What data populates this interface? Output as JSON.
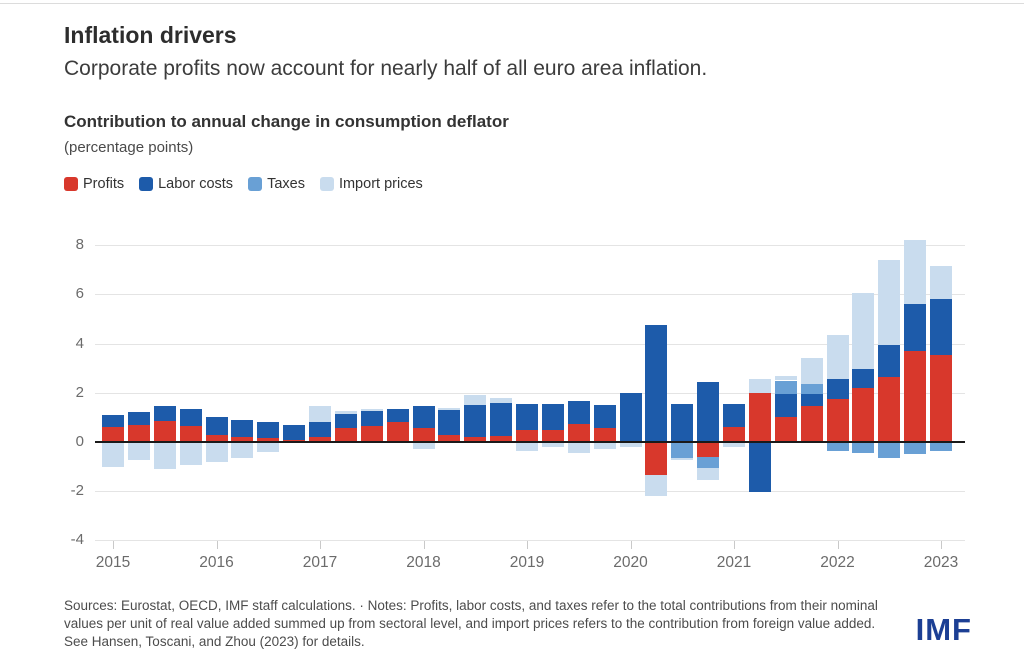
{
  "header": {
    "title": "Inflation drivers",
    "subtitle": "Corporate profits now account for nearly half of all euro area inflation."
  },
  "chart": {
    "heading": "Contribution to annual change in consumption deflator",
    "unit": "(percentage points)"
  },
  "chart_data": {
    "type": "bar",
    "stacked": true,
    "title": "Contribution to annual change in consumption deflator",
    "ylabel": "percentage points",
    "grid": true,
    "legend_position": "top-left",
    "ylim": [
      -4,
      8.6
    ],
    "yticks": [
      8,
      6,
      4,
      2,
      0,
      -2,
      -4
    ],
    "year_ticks": [
      "2015",
      "2016",
      "2017",
      "2018",
      "2019",
      "2020",
      "2021",
      "2022",
      "2023"
    ],
    "x_quarters": [
      "2015Q1",
      "2015Q2",
      "2015Q3",
      "2015Q4",
      "2016Q1",
      "2016Q2",
      "2016Q3",
      "2016Q4",
      "2017Q1",
      "2017Q2",
      "2017Q3",
      "2017Q4",
      "2018Q1",
      "2018Q2",
      "2018Q3",
      "2018Q4",
      "2019Q1",
      "2019Q2",
      "2019Q3",
      "2019Q4",
      "2020Q1",
      "2020Q2",
      "2020Q3",
      "2020Q4",
      "2021Q1",
      "2021Q2",
      "2021Q3",
      "2021Q4",
      "2022Q1",
      "2022Q2",
      "2022Q3",
      "2022Q4",
      "2023Q1"
    ],
    "series": [
      {
        "name": "Profits",
        "color": "#d8382c",
        "values": [
          0.6,
          0.7,
          0.85,
          0.65,
          0.3,
          0.2,
          0.15,
          0.1,
          0.2,
          0.55,
          0.65,
          0.8,
          0.55,
          0.3,
          0.2,
          0.25,
          0.5,
          0.5,
          0.75,
          0.55,
          0.05,
          -1.35,
          0,
          -0.6,
          0.6,
          2.0,
          1.0,
          1.45,
          1.75,
          2.2,
          2.65,
          3.7,
          3.55
        ]
      },
      {
        "name": "Labor costs",
        "color": "#1d5baa",
        "values": [
          0.5,
          0.5,
          0.6,
          0.7,
          0.7,
          0.7,
          0.65,
          0.6,
          0.6,
          0.6,
          0.6,
          0.55,
          0.9,
          1.0,
          1.3,
          1.35,
          1.05,
          1.05,
          0.9,
          0.95,
          1.95,
          4.75,
          1.55,
          2.45,
          0.95,
          -2.05,
          0.95,
          0.5,
          0.8,
          0.75,
          1.3,
          1.9,
          2.25
        ]
      },
      {
        "name": "Taxes",
        "color": "#69a0d5",
        "values": [
          0,
          0,
          0,
          0,
          0,
          0,
          0,
          0,
          0,
          0,
          0,
          0,
          0,
          0,
          0,
          0,
          0,
          0,
          0,
          0,
          0,
          0,
          -0.65,
          -0.45,
          0,
          0,
          0.55,
          0.4,
          -0.35,
          -0.45,
          -0.65,
          -0.5,
          -0.35
        ]
      },
      {
        "name": "Import prices",
        "color": "#c9dcee",
        "values": [
          -1.0,
          -0.75,
          -1.1,
          -0.95,
          -0.8,
          -0.65,
          -0.4,
          -0.05,
          0.65,
          0.1,
          0.1,
          0,
          -0.3,
          0.1,
          0.4,
          0.2,
          -0.35,
          -0.2,
          -0.45,
          -0.3,
          -0.2,
          -0.85,
          -0.1,
          -0.5,
          -0.2,
          0.55,
          0.2,
          1.05,
          1.8,
          3.1,
          3.45,
          2.6,
          1.35
        ]
      }
    ]
  },
  "footer": {
    "source_note": "Sources: Eurostat, OECD, IMF staff calculations. · Notes: Profits, labor costs, and taxes refer to the total contributions from their nominal values per unit of real value added summed up from sectoral level, and import prices refers to the contribution from foreign value added. See Hansen, Toscani, and Zhou (2023) for details.",
    "logo_text": "IMF"
  }
}
